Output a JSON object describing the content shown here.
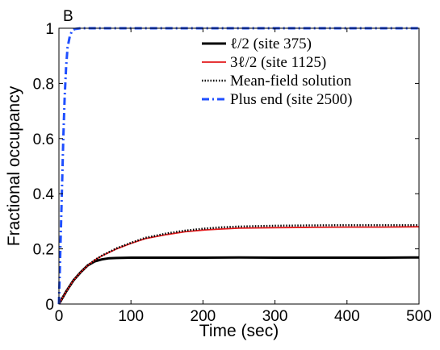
{
  "chart_data": {
    "type": "line",
    "panel_label": "B",
    "xlabel": "Time (sec)",
    "ylabel": "Fractional occupancy",
    "xlim": [
      0,
      500
    ],
    "ylim": [
      0,
      1
    ],
    "x_ticks": [
      0,
      100,
      200,
      300,
      400,
      500
    ],
    "y_ticks": [
      0,
      0.2,
      0.4,
      0.6,
      0.8,
      1
    ],
    "x_tick_labels": [
      "0",
      "100",
      "200",
      "300",
      "400",
      "500"
    ],
    "y_tick_labels": [
      "0",
      "0.2",
      "0.4",
      "0.6",
      "0.8",
      "1"
    ],
    "grid": false,
    "legend_position": "top-right",
    "series": [
      {
        "name": "ℓ/2 (site 375)",
        "color": "#000000",
        "style": "solid-thick",
        "x": [
          0,
          10,
          20,
          30,
          40,
          50,
          60,
          70,
          80,
          100,
          150,
          200,
          250,
          300,
          350,
          400,
          450,
          500
        ],
        "y": [
          0,
          0.045,
          0.085,
          0.115,
          0.14,
          0.155,
          0.162,
          0.166,
          0.167,
          0.168,
          0.168,
          0.168,
          0.169,
          0.168,
          0.168,
          0.168,
          0.168,
          0.169
        ]
      },
      {
        "name": "3ℓ/2 (site 1125)",
        "color": "#e31a1c",
        "style": "solid",
        "x": [
          0,
          10,
          20,
          30,
          40,
          50,
          60,
          80,
          100,
          120,
          150,
          175,
          200,
          225,
          250,
          300,
          350,
          400,
          450,
          500
        ],
        "y": [
          0,
          0.045,
          0.085,
          0.115,
          0.14,
          0.16,
          0.175,
          0.2,
          0.22,
          0.237,
          0.252,
          0.262,
          0.268,
          0.272,
          0.275,
          0.277,
          0.278,
          0.279,
          0.279,
          0.28
        ]
      },
      {
        "name": "Mean-field solution",
        "color": "#000000",
        "style": "dotted",
        "x": [
          0,
          10,
          20,
          30,
          40,
          50,
          60,
          80,
          100,
          120,
          150,
          175,
          200,
          225,
          250,
          300,
          350,
          400,
          450,
          500
        ],
        "y": [
          0,
          0.045,
          0.085,
          0.115,
          0.14,
          0.16,
          0.176,
          0.202,
          0.222,
          0.24,
          0.256,
          0.266,
          0.273,
          0.278,
          0.281,
          0.284,
          0.285,
          0.286,
          0.286,
          0.286
        ]
      },
      {
        "name": "Plus end (site 2500)",
        "color": "#1f4fff",
        "style": "dashdot",
        "x": [
          0,
          2,
          4,
          6,
          8,
          10,
          12,
          15,
          18,
          22,
          30,
          100,
          200,
          300,
          400,
          500
        ],
        "y": [
          0,
          0.2,
          0.4,
          0.6,
          0.75,
          0.86,
          0.93,
          0.97,
          0.99,
          0.997,
          1,
          1,
          1,
          1,
          1,
          1
        ]
      }
    ]
  }
}
